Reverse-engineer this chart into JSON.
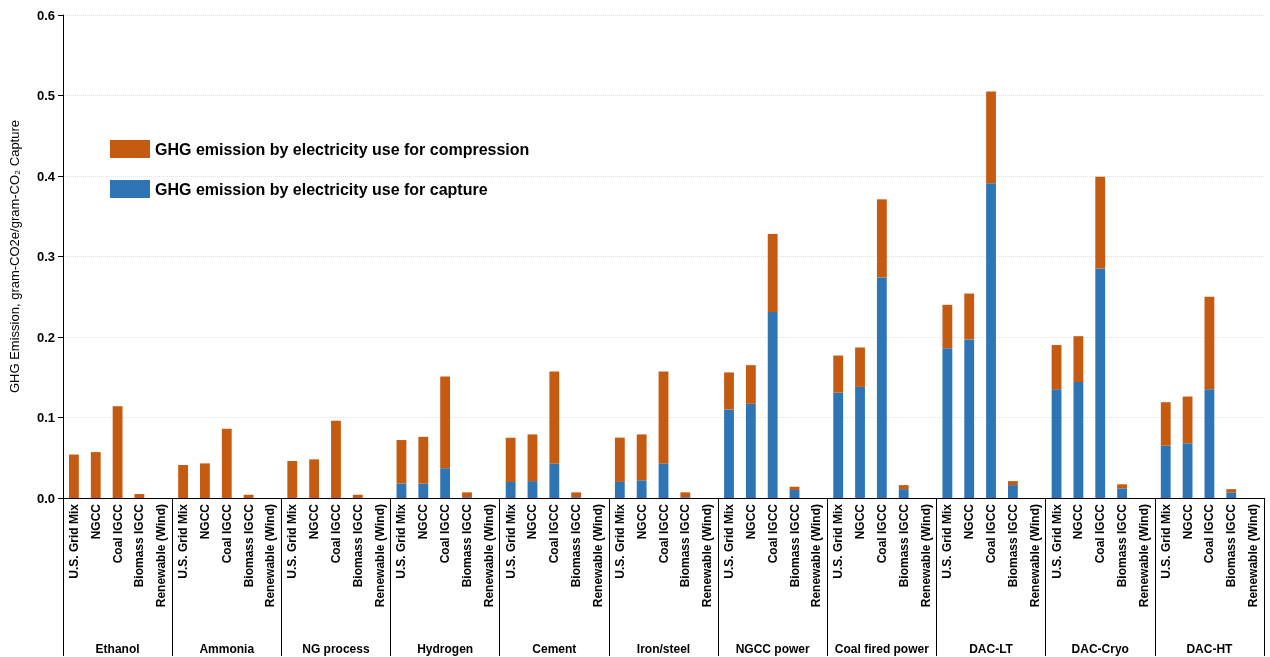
{
  "chart_data": {
    "type": "bar",
    "stacked": true,
    "ylabel": "GHG Emission, gram-CO2e/gram-CO₂ Capture",
    "categories": [
      "U.S. Grid Mix",
      "NGCC",
      "Coal IGCC",
      "Biomass IGCC",
      "Renewable (Wind)",
      "U.S. Grid Mix",
      "NGCC",
      "Coal IGCC",
      "Biomass IGCC",
      "Renewable (Wind)",
      "U.S. Grid Mix",
      "NGCC",
      "Coal IGCC",
      "Biomass IGCC",
      "Renewable (Wind)",
      "U.S. Grid Mix",
      "NGCC",
      "Coal IGCC",
      "Biomass IGCC",
      "Renewable (Wind)",
      "U.S. Grid Mix",
      "NGCC",
      "Coal IGCC",
      "Biomass IGCC",
      "Renewable (Wind)",
      "U.S. Grid Mix",
      "NGCC",
      "Coal IGCC",
      "Biomass IGCC",
      "Renewable (Wind)",
      "U.S. Grid Mix",
      "NGCC",
      "Coal IGCC",
      "Biomass IGCC",
      "Renewable (Wind)",
      "U.S. Grid Mix",
      "NGCC",
      "Coal IGCC",
      "Biomass IGCC",
      "Renewable (Wind)",
      "U.S. Grid Mix",
      "NGCC",
      "Coal IGCC",
      "Biomass IGCC",
      "Renewable (Wind)",
      "U.S. Grid Mix",
      "NGCC",
      "Coal IGCC",
      "Biomass IGCC",
      "Renewable (Wind)",
      "U.S. Grid Mix",
      "NGCC",
      "Coal IGCC",
      "Biomass IGCC",
      "Renewable (Wind)"
    ],
    "annotations": [
      "Ethanol",
      "Ammonia",
      "NG process",
      "Hydrogen",
      "Cement",
      "Iron/steel",
      "NGCC power",
      "Coal fired power",
      "DAC-LT",
      "DAC-Cryo",
      "DAC-HT"
    ],
    "series": [
      {
        "name": "GHG emission by electricity use for capture",
        "color": "#2e75b6",
        "values": [
          0,
          0,
          0,
          0,
          0,
          0,
          0,
          0,
          0,
          0,
          0,
          0,
          0,
          0,
          0,
          0.018,
          0.018,
          0.037,
          0.001,
          0,
          0.02,
          0.021,
          0.043,
          0.001,
          0,
          0.02,
          0.022,
          0.043,
          0.001,
          0,
          0.11,
          0.117,
          0.231,
          0.01,
          0,
          0.131,
          0.138,
          0.274,
          0.011,
          0,
          0.186,
          0.197,
          0.391,
          0.016,
          0,
          0.135,
          0.144,
          0.285,
          0.012,
          0,
          0.065,
          0.068,
          0.135,
          0.007,
          0
        ]
      },
      {
        "name": "GHG emission by electricity use for compression",
        "color": "#c55a11",
        "values": [
          0.054,
          0.057,
          0.114,
          0.005,
          0,
          0.041,
          0.043,
          0.086,
          0.004,
          0,
          0.046,
          0.048,
          0.096,
          0.004,
          0,
          0.054,
          0.058,
          0.114,
          0.006,
          0,
          0.055,
          0.058,
          0.114,
          0.006,
          0,
          0.055,
          0.057,
          0.114,
          0.006,
          0,
          0.046,
          0.048,
          0.097,
          0.004,
          0,
          0.046,
          0.049,
          0.097,
          0.005,
          0,
          0.054,
          0.057,
          0.114,
          0.005,
          0,
          0.055,
          0.057,
          0.114,
          0.005,
          0,
          0.054,
          0.058,
          0.115,
          0.004,
          0
        ]
      }
    ],
    "ylim": [
      0,
      0.6
    ],
    "yticks": [
      {
        "value": 0,
        "label": "0.0"
      },
      0.1,
      0.2,
      0.3,
      0.4,
      0.5,
      0.6
    ],
    "grid": "y",
    "legend": "top left"
  }
}
